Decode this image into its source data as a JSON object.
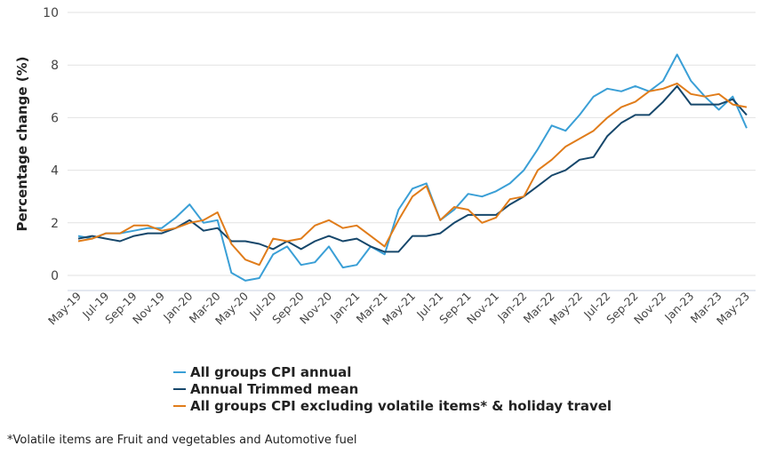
{
  "chart_data": {
    "type": "line",
    "title": "",
    "xlabel": "",
    "ylabel": "Percentage change (%)",
    "ylim": [
      -0.5,
      10
    ],
    "yticks": [
      0,
      2,
      4,
      6,
      8,
      10
    ],
    "grid": true,
    "legend_position": "bottom",
    "x": [
      "May-19",
      "Jun-19",
      "Jul-19",
      "Aug-19",
      "Sep-19",
      "Oct-19",
      "Nov-19",
      "Dec-19",
      "Jan-20",
      "Feb-20",
      "Mar-20",
      "Apr-20",
      "May-20",
      "Jun-20",
      "Jul-20",
      "Aug-20",
      "Sep-20",
      "Oct-20",
      "Nov-20",
      "Dec-20",
      "Jan-21",
      "Feb-21",
      "Mar-21",
      "Apr-21",
      "May-21",
      "Jun-21",
      "Jul-21",
      "Aug-21",
      "Sep-21",
      "Oct-21",
      "Nov-21",
      "Dec-21",
      "Jan-22",
      "Feb-22",
      "Mar-22",
      "Apr-22",
      "May-22",
      "Jun-22",
      "Jul-22",
      "Aug-22",
      "Sep-22",
      "Oct-22",
      "Nov-22",
      "Dec-22",
      "Jan-23",
      "Feb-23",
      "Mar-23",
      "Apr-23",
      "May-23"
    ],
    "xtick_labels": [
      "May-19",
      "Jul-19",
      "Sep-19",
      "Nov-19",
      "Jan-20",
      "Mar-20",
      "May-20",
      "Jul-20",
      "Sep-20",
      "Nov-20",
      "Jan-21",
      "Mar-21",
      "May-21",
      "Jul-21",
      "Sep-21",
      "Nov-21",
      "Jan-22",
      "Mar-22",
      "May-22",
      "Jul-22",
      "Sep-22",
      "Nov-22",
      "Jan-23",
      "Mar-23",
      "May-23"
    ],
    "series": [
      {
        "name": "All groups CPI annual",
        "color": "#3a9fd6",
        "values": [
          1.5,
          1.4,
          1.6,
          1.6,
          1.7,
          1.8,
          1.8,
          2.2,
          2.7,
          2.0,
          2.1,
          0.1,
          -0.2,
          -0.1,
          0.8,
          1.1,
          0.4,
          0.5,
          1.1,
          0.3,
          0.4,
          1.1,
          0.8,
          2.5,
          3.3,
          3.5,
          2.1,
          2.5,
          3.1,
          3.0,
          3.2,
          3.5,
          4.0,
          4.8,
          5.7,
          5.5,
          6.1,
          6.8,
          7.1,
          7.0,
          7.2,
          7.0,
          7.4,
          8.4,
          7.4,
          6.8,
          6.3,
          6.8,
          5.6
        ]
      },
      {
        "name": "Annual Trimmed mean",
        "color": "#16476b",
        "values": [
          1.4,
          1.5,
          1.4,
          1.3,
          1.5,
          1.6,
          1.6,
          1.8,
          2.1,
          1.7,
          1.8,
          1.3,
          1.3,
          1.2,
          1.0,
          1.3,
          1.0,
          1.3,
          1.5,
          1.3,
          1.4,
          1.1,
          0.9,
          0.9,
          1.5,
          1.5,
          1.6,
          2.0,
          2.3,
          2.3,
          2.3,
          2.7,
          3.0,
          3.4,
          3.8,
          4.0,
          4.4,
          4.5,
          5.3,
          5.8,
          6.1,
          6.1,
          6.6,
          7.2,
          6.5,
          6.5,
          6.5,
          6.7,
          6.1
        ]
      },
      {
        "name": "All groups CPI excluding volatile items* & holiday travel",
        "color": "#e07c1a",
        "values": [
          1.3,
          1.4,
          1.6,
          1.6,
          1.9,
          1.9,
          1.7,
          1.8,
          2.0,
          2.1,
          2.4,
          1.2,
          0.6,
          0.4,
          1.4,
          1.3,
          1.4,
          1.9,
          2.1,
          1.8,
          1.9,
          1.5,
          1.1,
          2.1,
          3.0,
          3.4,
          2.1,
          2.6,
          2.5,
          2.0,
          2.2,
          2.9,
          3.0,
          4.0,
          4.4,
          4.9,
          5.2,
          5.5,
          6.0,
          6.4,
          6.6,
          7.0,
          7.1,
          7.3,
          6.9,
          6.8,
          6.9,
          6.5,
          6.4
        ]
      }
    ]
  },
  "footnote": "*Volatile items are Fruit and vegetables and Automotive fuel"
}
